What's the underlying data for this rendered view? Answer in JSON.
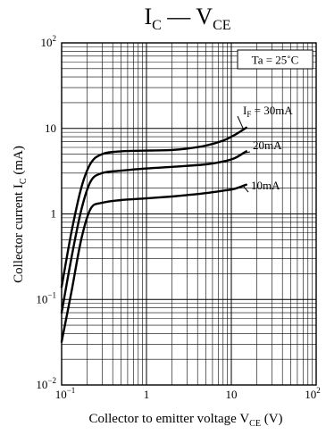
{
  "chart_data": {
    "type": "line",
    "title": {
      "main": "I",
      "sub1": "C",
      "dash": " — V",
      "sub2": "CE"
    },
    "xlabel": {
      "text": "Collector to emitter voltage",
      "sym": "V",
      "sub": "CE",
      "unit": "(V)"
    },
    "ylabel": {
      "text": "Collector current",
      "sym": "I",
      "sub": "C",
      "unit": "(mA)"
    },
    "x_scale": "log",
    "y_scale": "log",
    "xlim": [
      0.1,
      100
    ],
    "ylim": [
      0.01,
      100
    ],
    "grid": true,
    "x_ticks": [
      {
        "value": 0.1,
        "base": "10",
        "exp": "−1"
      },
      {
        "value": 1,
        "text": "1"
      },
      {
        "value": 10,
        "text": "10"
      },
      {
        "value": 100,
        "base": "10",
        "exp": "2"
      }
    ],
    "y_ticks": [
      {
        "value": 0.01,
        "base": "10",
        "exp": "−2"
      },
      {
        "value": 0.1,
        "base": "10",
        "exp": "−1"
      },
      {
        "value": 1,
        "text": "1"
      },
      {
        "value": 10,
        "text": "10"
      },
      {
        "value": 100,
        "base": "10",
        "exp": "2"
      }
    ],
    "annotation": "Ta = 25˚C",
    "series": [
      {
        "name": "I_F = 30mA",
        "label": {
          "sym": "I",
          "sub": "F",
          "rest": " = 30mA"
        },
        "x": [
          0.1,
          0.13,
          0.17,
          0.22,
          0.3,
          0.5,
          1,
          2,
          3,
          5,
          8,
          11,
          15
        ],
        "y": [
          0.14,
          0.6,
          2.0,
          3.9,
          5.0,
          5.4,
          5.5,
          5.6,
          5.8,
          6.3,
          7.2,
          8.4,
          10.2
        ]
      },
      {
        "name": "20mA",
        "label": {
          "text": "20mA"
        },
        "x": [
          0.1,
          0.13,
          0.17,
          0.22,
          0.3,
          0.5,
          1,
          2,
          3,
          5,
          8,
          11,
          15
        ],
        "y": [
          0.07,
          0.3,
          1.1,
          2.4,
          3.0,
          3.2,
          3.4,
          3.55,
          3.65,
          3.8,
          4.1,
          4.5,
          5.4
        ]
      },
      {
        "name": "10mA",
        "label": {
          "text": "10mA"
        },
        "x": [
          0.1,
          0.13,
          0.17,
          0.22,
          0.3,
          0.5,
          1,
          2,
          3,
          5,
          8,
          11,
          15
        ],
        "y": [
          0.032,
          0.12,
          0.5,
          1.15,
          1.35,
          1.45,
          1.52,
          1.6,
          1.66,
          1.75,
          1.87,
          1.97,
          2.2
        ]
      }
    ]
  }
}
